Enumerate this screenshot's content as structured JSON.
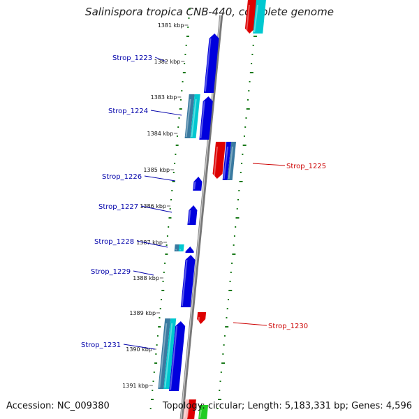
{
  "title": "Salinispora tropica CNB-440, complete genome",
  "footer": {
    "accession": "Accession: NC_009380",
    "summary": "Topology: circular; Length: 5,183,331 bp; Genes: 4,596"
  },
  "colors": {
    "forward_gene": "#0000dd",
    "reverse_gene": "#dd0000",
    "label_forward": "#0000aa",
    "label_reverse": "#cc0000",
    "tick": "#1a7a1a",
    "backbone": "#777777",
    "cyan": "#00c8d0",
    "steel": "#3a7aa0"
  },
  "kbp_ticks": [
    "1381 kbp",
    "1382 kbp",
    "1383 kbp",
    "1384 kbp",
    "1385 kbp",
    "1386 kbp",
    "1387 kbp",
    "1388 kbp",
    "1389 kbp",
    "1390 kbp",
    "1391 kbp"
  ],
  "gene_labels": [
    {
      "name": "Strop_1223",
      "strand": "forward"
    },
    {
      "name": "Strop_1224",
      "strand": "forward"
    },
    {
      "name": "Strop_1225",
      "strand": "reverse"
    },
    {
      "name": "Strop_1226",
      "strand": "forward"
    },
    {
      "name": "Strop_1227",
      "strand": "forward"
    },
    {
      "name": "Strop_1228",
      "strand": "forward"
    },
    {
      "name": "Strop_1229",
      "strand": "forward"
    },
    {
      "name": "Strop_1230",
      "strand": "reverse"
    },
    {
      "name": "Strop_1231",
      "strand": "forward"
    }
  ]
}
